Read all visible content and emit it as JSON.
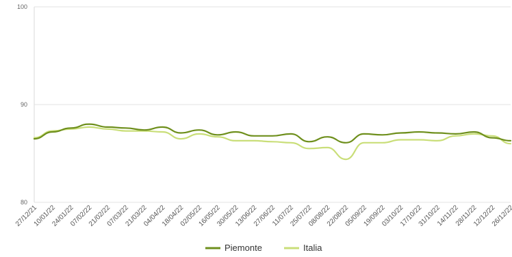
{
  "chart_data": {
    "type": "line",
    "title": "",
    "xlabel": "",
    "ylabel": "",
    "ylim": [
      80,
      100
    ],
    "yticks": [
      "100",
      "90",
      "80"
    ],
    "grid": "horizontal",
    "legend_position": "bottom-center",
    "x": [
      "27/12/21",
      "10/01/22",
      "24/01/22",
      "07/02/22",
      "21/02/22",
      "07/03/22",
      "21/03/22",
      "04/04/22",
      "18/04/22",
      "02/05/22",
      "16/05/22",
      "30/05/22",
      "13/06/22",
      "27/06/22",
      "11/07/22",
      "25/07/22",
      "08/08/22",
      "22/08/22",
      "05/09/22",
      "19/09/22",
      "03/10/22",
      "17/10/22",
      "31/10/22",
      "14/11/22",
      "28/11/22",
      "12/12/22",
      "26/12/22"
    ],
    "series": [
      {
        "name": "Piemonte",
        "color": "#6e8f1c",
        "values": [
          86.5,
          87.2,
          87.6,
          88.0,
          87.7,
          87.6,
          87.4,
          87.7,
          87.1,
          87.4,
          86.9,
          87.2,
          86.8,
          86.8,
          87.0,
          86.2,
          86.7,
          86.1,
          87.0,
          86.9,
          87.1,
          87.2,
          87.1,
          87.0,
          87.2,
          86.6,
          86.3
        ]
      },
      {
        "name": "Italia",
        "color": "#c9de78",
        "values": [
          86.6,
          87.3,
          87.5,
          87.7,
          87.5,
          87.3,
          87.3,
          87.2,
          86.5,
          87.0,
          86.7,
          86.3,
          86.3,
          86.2,
          86.1,
          85.5,
          85.6,
          84.4,
          86.1,
          86.1,
          86.4,
          86.4,
          86.3,
          86.8,
          87.0,
          86.8,
          86.0
        ]
      }
    ]
  }
}
